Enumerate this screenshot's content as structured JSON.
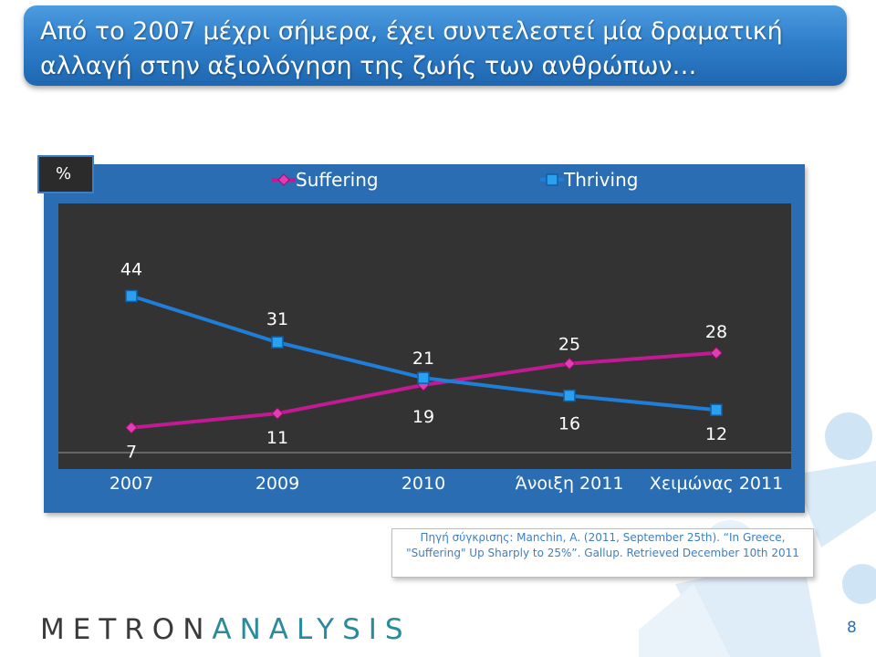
{
  "slide": {
    "title": "Από το 2007 μέχρι σήμερα, έχει συντελεστεί μία δραματική αλλαγή στην αξιολόγηση της ζωής των ανθρώπων…",
    "unit_label": "%",
    "source": "Πηγή σύγκρισης: Manchin, A. (2011, September 25th). “In Greece, \"Suffering\" Up Sharply to 25%”. Gallup. Retrieved December 10th 2011",
    "logo_part1": "METRON",
    "logo_part2": "ANALYSIS",
    "page_number": "8"
  },
  "colors": {
    "title_bar": "#2f7fcb",
    "chart_panel": "#2a6db2",
    "plot_area": "#333333",
    "suffering": "#c21a93",
    "thriving": "#1f7fd8"
  },
  "chart_data": {
    "type": "line",
    "categories": [
      "2007",
      "2009",
      "2010",
      "Άνοιξη 2011",
      "Χειμώνας 2011"
    ],
    "series": [
      {
        "name": "Suffering",
        "values": [
          7,
          11,
          19,
          25,
          28
        ],
        "marker": "diamond",
        "color": "#c21a93"
      },
      {
        "name": "Thriving",
        "values": [
          44,
          31,
          21,
          16,
          12
        ],
        "marker": "square",
        "color": "#1f7fd8"
      }
    ],
    "ylim": [
      0,
      70
    ],
    "legend": "top",
    "grid": false
  }
}
